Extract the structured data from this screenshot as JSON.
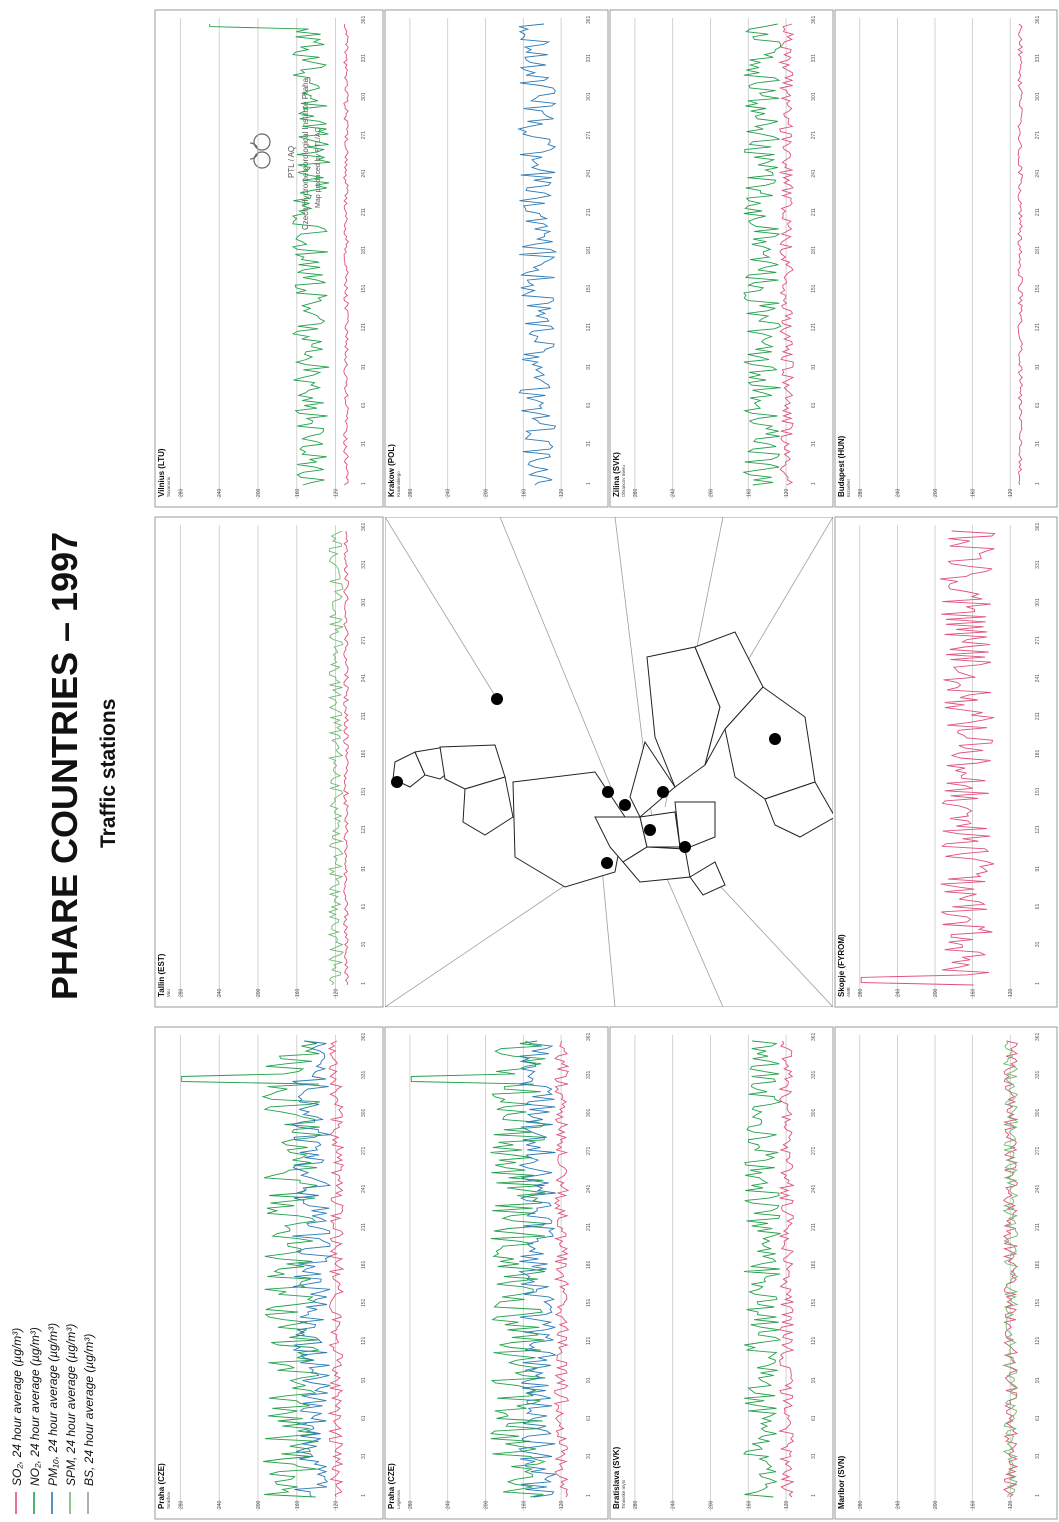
{
  "title": "PHARE COUNTRIES – 1997",
  "subtitle": "Traffic stations",
  "legend": [
    {
      "name": "SO₂, 24 hour average (µg/m³)",
      "color": "#e0507a"
    },
    {
      "name": "NO₂, 24 hour average (µg/m³)",
      "color": "#22a04a"
    },
    {
      "name": "PM₁₀, 24 hour average (µg/m³)",
      "color": "#2a7ab8"
    },
    {
      "name": "SPM, 24 hour average (µg/m³)",
      "color": "#70b870"
    },
    {
      "name": "BS, 24 hour average (µg/m³)",
      "color": "#9a9a9a"
    }
  ],
  "credits": {
    "line1": "PTL / AQ",
    "line2": "Czech Hydrometeorological Institute Praha",
    "line3": "Map produced by PTL/AQ"
  },
  "x_ticks": [
    "1",
    "31",
    "61",
    "91",
    "121",
    "151",
    "181",
    "211",
    "241",
    "271",
    "301",
    "331",
    "361"
  ],
  "stations": [
    {
      "name": "Praha (CZE)",
      "sub": "Smichov",
      "ylabels": [
        "120",
        "160",
        "200",
        "240",
        "280"
      ]
    },
    {
      "name": "Praha (CZE)",
      "sub": "Legerova",
      "ylabels": [
        "120",
        "160",
        "200",
        "240",
        "280"
      ]
    },
    {
      "name": "Bratislava (SVK)",
      "sub": "Trnavske myto",
      "ylabels": [
        "120",
        "160",
        "200",
        "240",
        "280"
      ]
    },
    {
      "name": "Maribor (SVN)",
      "sub": "",
      "ylabels": [
        "120",
        "160",
        "200",
        "240",
        "280"
      ]
    },
    {
      "name": "Tallin (EST)",
      "sub": "Viru",
      "ylabels": [
        "120",
        "160",
        "200",
        "240",
        "280"
      ]
    },
    {
      "name": "Skopje (FYROM)",
      "sub": "AMB",
      "ylabels": [
        "120",
        "160",
        "200",
        "240",
        "280"
      ]
    },
    {
      "name": "Vilnius (LTU)",
      "sub": "Savanoriu",
      "ylabels": [
        "120",
        "160",
        "200",
        "240",
        "280"
      ]
    },
    {
      "name": "Krakow (POL)",
      "sub": "Krasinskiego",
      "ylabels": [
        "120",
        "160",
        "200",
        "240",
        "280"
      ]
    },
    {
      "name": "Zilina (SVK)",
      "sub": "Obrancov mieru",
      "ylabels": [
        "120",
        "160",
        "200",
        "240",
        "280"
      ]
    },
    {
      "name": "Budapest (HUN)",
      "sub": "Erzsebet",
      "ylabels": [
        "120",
        "160",
        "200",
        "240",
        "280"
      ]
    }
  ],
  "chart_data": [
    {
      "type": "line",
      "title": "Praha (CZE)",
      "series": [
        {
          "name": "SO₂",
          "level": "low"
        },
        {
          "name": "NO₂",
          "level": "high",
          "peak_day": 331
        },
        {
          "name": "PM₁₀",
          "level": "medium"
        }
      ]
    },
    {
      "type": "line",
      "title": "Praha (CZE)",
      "series": [
        {
          "name": "SO₂",
          "level": "low"
        },
        {
          "name": "NO₂",
          "level": "high",
          "peak_day": 331
        },
        {
          "name": "PM₁₀",
          "level": "medium"
        }
      ]
    },
    {
      "type": "line",
      "title": "Bratislava (SVK)",
      "series": [
        {
          "name": "SO₂",
          "level": "low"
        },
        {
          "name": "NO₂",
          "level": "medium"
        }
      ]
    },
    {
      "type": "line",
      "title": "Maribor (SVN)",
      "series": [
        {
          "name": "SO₂",
          "level": "low"
        },
        {
          "name": "SPM",
          "level": "low"
        }
      ]
    },
    {
      "type": "line",
      "title": "Tallin (EST)",
      "series": [
        {
          "name": "SO₂",
          "level": "very low"
        },
        {
          "name": "SPM",
          "level": "low"
        }
      ]
    },
    {
      "type": "line",
      "title": "Skopje (FYROM)",
      "series": [
        {
          "name": "SO₂",
          "level": "high",
          "peak_day": 5
        }
      ]
    },
    {
      "type": "line",
      "title": "Vilnius (LTU)",
      "series": [
        {
          "name": "SO₂",
          "level": "very low"
        },
        {
          "name": "NO₂",
          "level": "medium",
          "peak_day": 361
        }
      ]
    },
    {
      "type": "line",
      "title": "Krakow (POL)",
      "series": [
        {
          "name": "PM₁₀",
          "level": "medium"
        }
      ]
    },
    {
      "type": "line",
      "title": "Zilina (SVK)",
      "series": [
        {
          "name": "SO₂",
          "level": "low"
        },
        {
          "name": "NO₂",
          "level": "medium"
        }
      ]
    },
    {
      "type": "line",
      "title": "Budapest (HUN)",
      "series": [
        {
          "name": "SO₂",
          "level": "very low"
        }
      ]
    }
  ]
}
